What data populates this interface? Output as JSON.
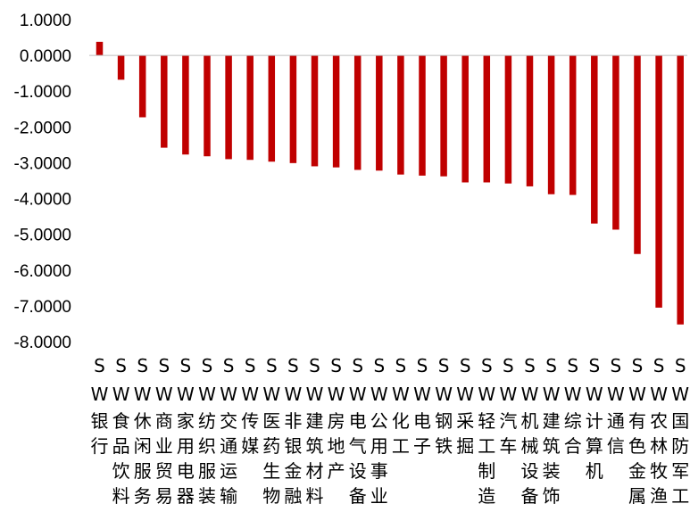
{
  "chart_data": {
    "type": "bar",
    "title": "",
    "xlabel": "",
    "ylabel": "",
    "ylim": [
      -8,
      1
    ],
    "ytick_step": 1,
    "ytick_labels": [
      "1.0000",
      "0.0000",
      "-1.0000",
      "-2.0000",
      "-3.0000",
      "-4.0000",
      "-5.0000",
      "-6.0000",
      "-7.0000",
      "-8.0000"
    ],
    "grid": false,
    "legend": "none",
    "bar_color": "#C00000",
    "categories": [
      "SW银行",
      "SW食品饮料",
      "SW休闲服务",
      "SW商业贸易",
      "SW家用电器",
      "SW纺织服装",
      "SW交通运输",
      "SW传媒",
      "SW医药生物",
      "SW非银金融",
      "SW建筑材料",
      "SW房地产",
      "SW电气设备",
      "SW公用事业",
      "SW化工",
      "SW电子",
      "SW钢铁",
      "SW采掘",
      "SW轻工制造",
      "SW汽车",
      "SW机械设备",
      "SW建筑装饰",
      "SW综合",
      "SW计算机",
      "SW通信",
      "SW有色金属",
      "SW农林牧渔",
      "SW国防军工"
    ],
    "values": [
      0.38,
      -0.68,
      -1.73,
      -2.58,
      -2.77,
      -2.82,
      -2.9,
      -2.92,
      -2.97,
      -3.01,
      -3.1,
      -3.13,
      -3.2,
      -3.22,
      -3.33,
      -3.36,
      -3.38,
      -3.55,
      -3.55,
      -3.58,
      -3.66,
      -3.88,
      -3.9,
      -4.7,
      -4.87,
      -5.55,
      -7.05,
      -7.52
    ]
  }
}
